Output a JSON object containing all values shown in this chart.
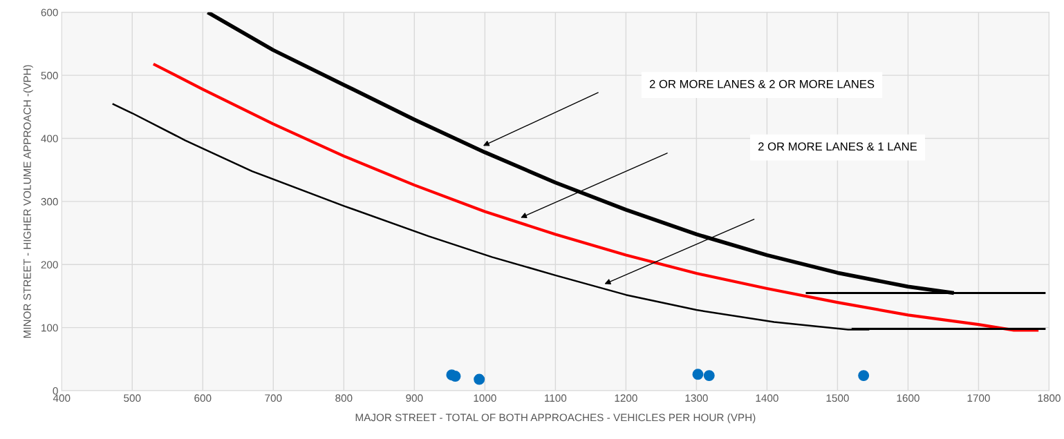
{
  "chart_data": {
    "type": "line",
    "xlabel": "MAJOR STREET - TOTAL OF BOTH APPROACHES - VEHICLES PER HOUR (VPH)",
    "ylabel": "MINOR STREET - HIGHER VOLUME APPROACH -(VPH)",
    "xlim": [
      400,
      1800
    ],
    "xticks": [
      400,
      500,
      600,
      700,
      800,
      900,
      1000,
      1100,
      1200,
      1300,
      1400,
      1500,
      1600,
      1700,
      1800
    ],
    "ylim": [
      0,
      600
    ],
    "yticks": [
      0,
      100,
      200,
      300,
      400,
      500,
      600
    ],
    "grid": true,
    "line_style": "solid",
    "annotations": [
      "2 OR MORE LANES & 2 OR MORE LANES",
      "2 OR MORE LANES & 1 LANE"
    ],
    "series": [
      {
        "color": "#000000",
        "x": [
          607,
          700,
          800,
          900,
          1000,
          1100,
          1200,
          1300,
          1400,
          1500,
          1600,
          1665
        ],
        "values": [
          600,
          540,
          485,
          430,
          378,
          330,
          287,
          248,
          215,
          187,
          165,
          155
        ]
      },
      {
        "color": "#ff0000",
        "x": [
          530,
          600,
          700,
          800,
          900,
          1000,
          1100,
          1200,
          1300,
          1400,
          1500,
          1600,
          1700,
          1750,
          1785
        ],
        "values": [
          518,
          478,
          423,
          372,
          326,
          284,
          248,
          215,
          186,
          162,
          140,
          120,
          105,
          96,
          96
        ]
      },
      {
        "color": "#000000",
        "x": [
          472,
          500,
          575,
          670,
          800,
          920,
          1010,
          1100,
          1200,
          1300,
          1410,
          1515,
          1545
        ],
        "values": [
          455,
          440,
          397,
          348,
          293,
          245,
          212,
          183,
          152,
          128,
          109,
          97,
          97
        ]
      },
      {
        "color": "#000000",
        "x": [
          1455,
          1795
        ],
        "values": [
          155,
          155
        ]
      },
      {
        "color": "#000000",
        "x": [
          1520,
          1795
        ],
        "values": [
          98,
          98
        ]
      },
      {
        "type": "scatter",
        "marker": "circle",
        "color": "#0070c0",
        "x": [
          953,
          958,
          992,
          1302,
          1318,
          1537
        ],
        "values": [
          25,
          23,
          18,
          26,
          24,
          24
        ]
      }
    ]
  }
}
